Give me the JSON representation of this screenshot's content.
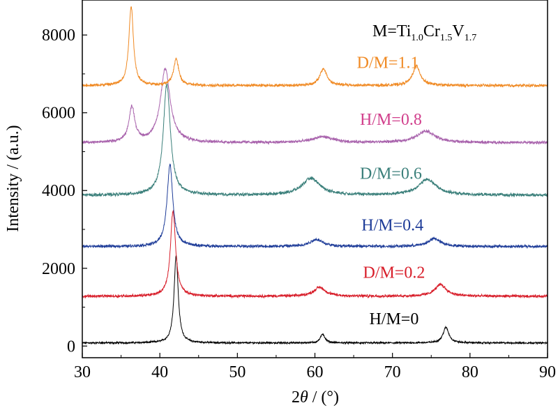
{
  "chart_data": {
    "type": "line",
    "xlabel_prefix": "2",
    "xlabel_var": "θ",
    "xlabel_suffix": " / (°)",
    "ylabel": "Intensity / (a.u.)",
    "xlim": [
      30,
      90
    ],
    "ylim": [
      -300,
      8900
    ],
    "xticks": [
      30,
      40,
      50,
      60,
      70,
      80,
      90
    ],
    "yticks": [
      0,
      2000,
      4000,
      6000,
      8000
    ],
    "grid": false,
    "annotation": {
      "prefix": "M=Ti",
      "sub1": "1.0",
      "mid1": "Cr",
      "sub2": "1.5",
      "mid2": "V",
      "sub3": "1.7"
    },
    "series": [
      {
        "name": "H/M=0",
        "color": "#000000",
        "baseline": 80,
        "noise": 18,
        "peaks": [
          {
            "x": 42.1,
            "h": 2250,
            "w": 0.32
          },
          {
            "x": 61.0,
            "h": 230,
            "w": 0.35
          },
          {
            "x": 76.9,
            "h": 400,
            "w": 0.45
          }
        ]
      },
      {
        "name": "D/M=0.2",
        "color": "#d81e2a",
        "baseline": 1280,
        "noise": 28,
        "peaks": [
          {
            "x": 41.7,
            "h": 2200,
            "w": 0.4
          },
          {
            "x": 60.6,
            "h": 230,
            "w": 0.9
          },
          {
            "x": 76.2,
            "h": 300,
            "w": 0.9
          }
        ]
      },
      {
        "name": "H/M=0.4",
        "color": "#1f3d99",
        "baseline": 2560,
        "noise": 30,
        "peaks": [
          {
            "x": 41.3,
            "h": 2100,
            "w": 0.45
          },
          {
            "x": 60.2,
            "h": 180,
            "w": 1.0
          },
          {
            "x": 75.4,
            "h": 200,
            "w": 1.0
          }
        ]
      },
      {
        "name": "D/M=0.6",
        "color": "#3a7f7a",
        "baseline": 3880,
        "noise": 32,
        "peaks": [
          {
            "x": 40.9,
            "h": 2850,
            "w": 0.55
          },
          {
            "x": 59.5,
            "h": 430,
            "w": 1.4
          },
          {
            "x": 74.5,
            "h": 400,
            "w": 1.4
          }
        ]
      },
      {
        "name": "H/M=0.8",
        "color": "#a862ac",
        "baseline": 5230,
        "noise": 30,
        "peaks": [
          {
            "x": 36.4,
            "h": 900,
            "w": 0.45
          },
          {
            "x": 40.7,
            "h": 1900,
            "w": 0.75
          },
          {
            "x": 61.0,
            "h": 150,
            "w": 1.5
          },
          {
            "x": 74.3,
            "h": 300,
            "w": 1.4
          }
        ]
      },
      {
        "name": "D/M=1.1",
        "color": "#f08a24",
        "baseline": 6700,
        "noise": 30,
        "peaks": [
          {
            "x": 36.3,
            "h": 2050,
            "w": 0.35
          },
          {
            "x": 42.1,
            "h": 680,
            "w": 0.4
          },
          {
            "x": 61.1,
            "h": 430,
            "w": 0.55
          },
          {
            "x": 73.1,
            "h": 500,
            "w": 0.6
          }
        ]
      }
    ]
  },
  "series_label_colors": {
    "H/M=0": "#000000",
    "D/M=0.2": "#d81e2a",
    "H/M=0.4": "#1f3d99",
    "D/M=0.6": "#3a7f7a",
    "H/M=0.8": "#d13f8c",
    "D/M=1.1": "#f08a24"
  }
}
